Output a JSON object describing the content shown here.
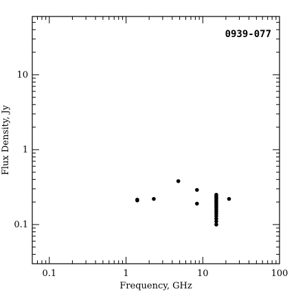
{
  "chart_data": {
    "type": "scatter",
    "title": "0939-077",
    "xlabel": "Frequency, GHz",
    "ylabel": "Flux Density, Jy",
    "x_scale": "log",
    "y_scale": "log",
    "xlim": [
      0.06,
      100
    ],
    "ylim": [
      0.03,
      60
    ],
    "x_ticks": [
      {
        "value": 0.1,
        "label": "0.1"
      },
      {
        "value": 1,
        "label": "1"
      },
      {
        "value": 10,
        "label": "10"
      },
      {
        "value": 100,
        "label": "100"
      }
    ],
    "y_ticks": [
      {
        "value": 0.1,
        "label": "0.1"
      },
      {
        "value": 1,
        "label": "1"
      },
      {
        "value": 10,
        "label": "10"
      }
    ],
    "grid": false,
    "legend": "none",
    "points": [
      {
        "x": 1.4,
        "y": 0.21
      },
      {
        "x": 1.4,
        "y": 0.215
      },
      {
        "x": 2.3,
        "y": 0.22
      },
      {
        "x": 4.8,
        "y": 0.38
      },
      {
        "x": 8.4,
        "y": 0.29
      },
      {
        "x": 8.4,
        "y": 0.19
      },
      {
        "x": 15,
        "y": 0.25
      },
      {
        "x": 15,
        "y": 0.24
      },
      {
        "x": 15,
        "y": 0.23
      },
      {
        "x": 15,
        "y": 0.22
      },
      {
        "x": 15,
        "y": 0.21
      },
      {
        "x": 15,
        "y": 0.2
      },
      {
        "x": 15,
        "y": 0.19
      },
      {
        "x": 15,
        "y": 0.18
      },
      {
        "x": 15,
        "y": 0.17
      },
      {
        "x": 15,
        "y": 0.16
      },
      {
        "x": 15,
        "y": 0.15
      },
      {
        "x": 15,
        "y": 0.14
      },
      {
        "x": 15,
        "y": 0.13
      },
      {
        "x": 15,
        "y": 0.12
      },
      {
        "x": 15,
        "y": 0.11
      },
      {
        "x": 15,
        "y": 0.1
      },
      {
        "x": 22,
        "y": 0.22
      }
    ],
    "colors": {
      "axis": "#000000",
      "point": "#000000",
      "background": "#ffffff"
    }
  }
}
